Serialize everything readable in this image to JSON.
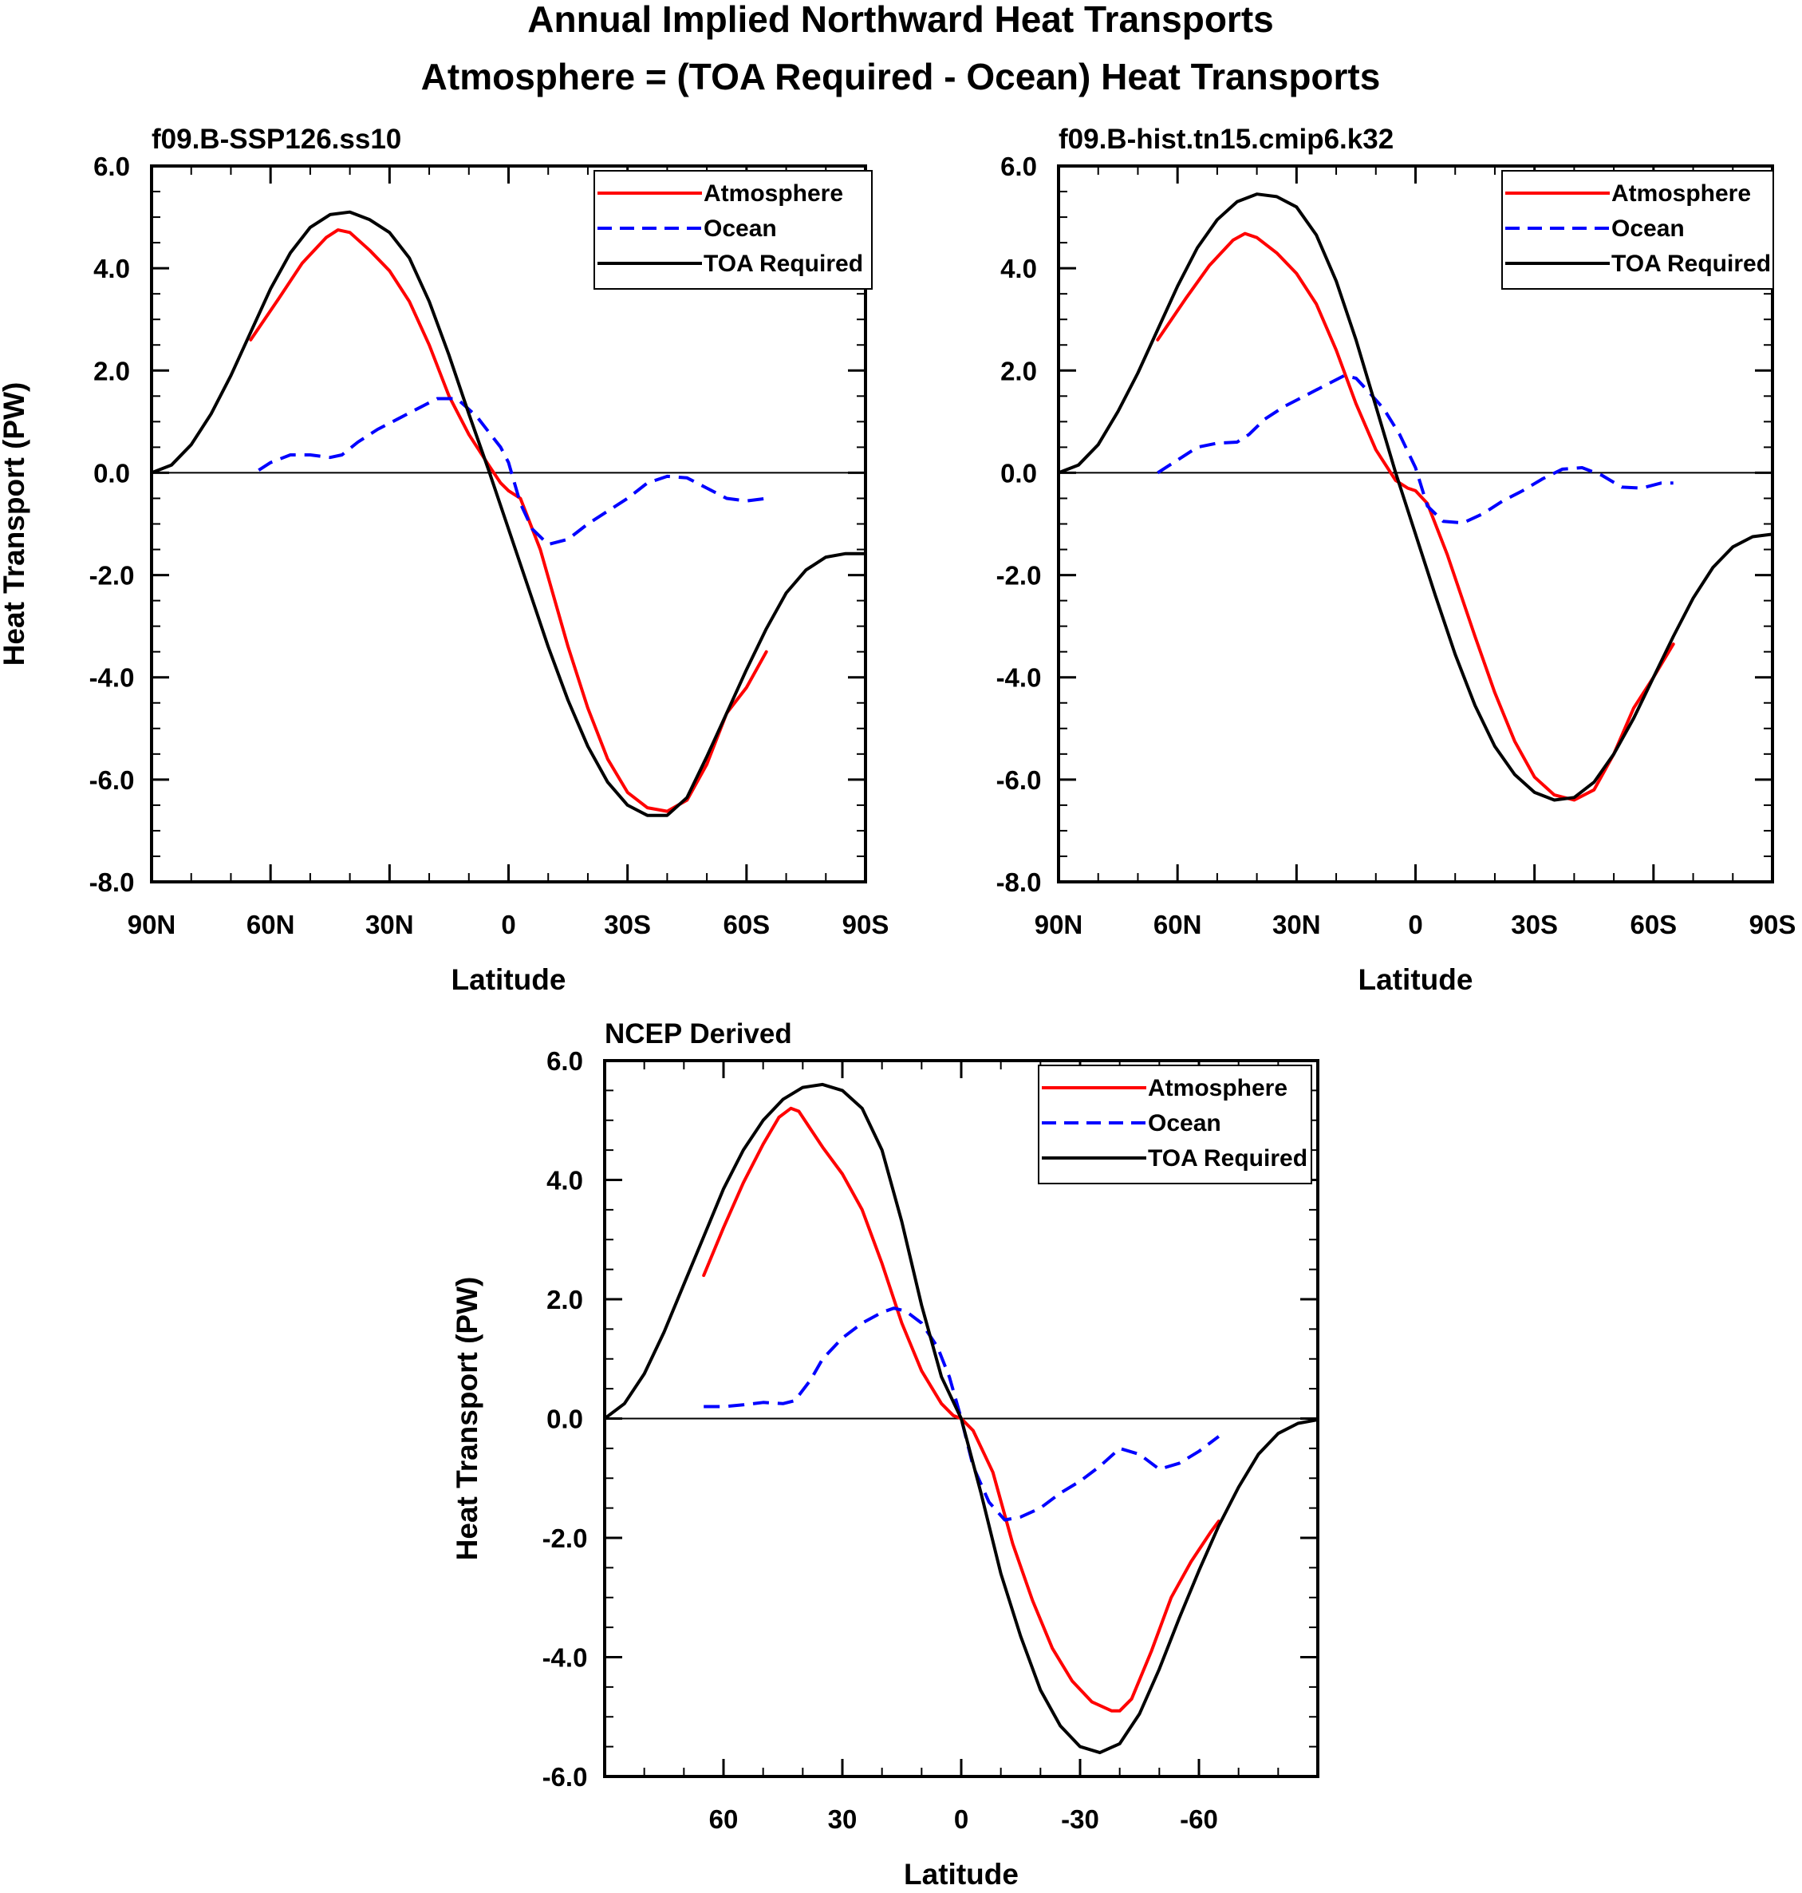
{
  "figure": {
    "title_line1": "Annual Implied Northward Heat Transports",
    "title_line2": "Atmosphere = (TOA Required - Ocean) Heat Transports"
  },
  "colors": {
    "atmosphere": "#ff0000",
    "ocean": "#0000ff",
    "toa": "#000000"
  },
  "chart_data": [
    {
      "type": "line",
      "title": "f09.B-SSP126.ss10",
      "xlabel": "Latitude",
      "ylabel": "Heat Transport (PW)",
      "xlim": [
        90,
        -90
      ],
      "ylim": [
        -8,
        6
      ],
      "xticks": [
        90,
        60,
        30,
        0,
        -30,
        -60,
        -90
      ],
      "xticklabels": [
        "90N",
        "60N",
        "30N",
        "0",
        "30S",
        "60S",
        "90S"
      ],
      "yticks": [
        6,
        4,
        2,
        0,
        -2,
        -4,
        -6,
        -8
      ],
      "yticklabels": [
        "6.0",
        "4.0",
        "2.0",
        "0.0",
        "-2.0",
        "-4.0",
        "-6.0",
        "-8.0"
      ],
      "legend": [
        "Atmosphere",
        "Ocean",
        "TOA Required"
      ],
      "legend_position": "top-right",
      "series": [
        {
          "name": "Atmosphere",
          "color": "#ff0000",
          "dash": "solid",
          "x": [
            65,
            58,
            52,
            46,
            43,
            40,
            35,
            30,
            25,
            20,
            15,
            10,
            5,
            2,
            0,
            -3,
            -8,
            -15,
            -20,
            -25,
            -30,
            -35,
            -40,
            -45,
            -50,
            -55,
            -60,
            -65
          ],
          "y": [
            2.6,
            3.4,
            4.1,
            4.6,
            4.75,
            4.7,
            4.35,
            3.95,
            3.35,
            2.5,
            1.5,
            0.75,
            0.15,
            -0.2,
            -0.35,
            -0.5,
            -1.5,
            -3.4,
            -4.6,
            -5.6,
            -6.25,
            -6.55,
            -6.62,
            -6.4,
            -5.7,
            -4.7,
            -4.2,
            -3.5
          ]
        },
        {
          "name": "Ocean",
          "color": "#0000ff",
          "dash": "dashed",
          "x": [
            63,
            60,
            55,
            50,
            45,
            42,
            38,
            33,
            28,
            23,
            18,
            13,
            8,
            5,
            2,
            0,
            -3,
            -6,
            -10,
            -15,
            -20,
            -25,
            -30,
            -35,
            -40,
            -45,
            -50,
            -55,
            -60,
            -65
          ],
          "y": [
            0.05,
            0.2,
            0.35,
            0.35,
            0.3,
            0.35,
            0.6,
            0.85,
            1.05,
            1.25,
            1.45,
            1.45,
            1.1,
            0.8,
            0.5,
            0.2,
            -0.6,
            -1.1,
            -1.4,
            -1.3,
            -1.0,
            -0.75,
            -0.5,
            -0.2,
            -0.07,
            -0.1,
            -0.3,
            -0.5,
            -0.55,
            -0.5
          ]
        },
        {
          "name": "TOA Required",
          "color": "#000000",
          "dash": "solid",
          "x": [
            90,
            85,
            80,
            75,
            70,
            65,
            60,
            55,
            50,
            45,
            40,
            35,
            30,
            25,
            20,
            15,
            10,
            5,
            0,
            -5,
            -10,
            -15,
            -20,
            -25,
            -30,
            -35,
            -40,
            -45,
            -50,
            -55,
            -60,
            -65,
            -70,
            -75,
            -80,
            -85,
            -90
          ],
          "y": [
            0,
            0.15,
            0.55,
            1.15,
            1.9,
            2.75,
            3.6,
            4.3,
            4.8,
            5.05,
            5.1,
            4.95,
            4.7,
            4.2,
            3.35,
            2.3,
            1.15,
            0.05,
            -1.1,
            -2.25,
            -3.4,
            -4.45,
            -5.35,
            -6.05,
            -6.5,
            -6.7,
            -6.7,
            -6.35,
            -5.55,
            -4.7,
            -3.85,
            -3.05,
            -2.35,
            -1.9,
            -1.65,
            -1.58,
            -1.58
          ]
        }
      ]
    },
    {
      "type": "line",
      "title": "f09.B-hist.tn15.cmip6.k32",
      "xlabel": "Latitude",
      "ylabel": "",
      "xlim": [
        90,
        -90
      ],
      "ylim": [
        -8,
        6
      ],
      "xticks": [
        90,
        60,
        30,
        0,
        -30,
        -60,
        -90
      ],
      "xticklabels": [
        "90N",
        "60N",
        "30N",
        "0",
        "30S",
        "60S",
        "90S"
      ],
      "yticks": [
        6,
        4,
        2,
        0,
        -2,
        -4,
        -6,
        -8
      ],
      "yticklabels": [
        "6.0",
        "4.0",
        "2.0",
        "0.0",
        "-2.0",
        "-4.0",
        "-6.0",
        "-8.0"
      ],
      "legend": [
        "Atmosphere",
        "Ocean",
        "TOA Required"
      ],
      "legend_position": "top-right",
      "series": [
        {
          "name": "Atmosphere",
          "color": "#ff0000",
          "dash": "solid",
          "x": [
            65,
            58,
            52,
            46,
            43,
            40,
            35,
            30,
            25,
            20,
            15,
            10,
            5,
            2,
            0,
            -3,
            -8,
            -15,
            -20,
            -25,
            -30,
            -35,
            -40,
            -45,
            -50,
            -55,
            -60,
            -65
          ],
          "y": [
            2.6,
            3.4,
            4.05,
            4.55,
            4.68,
            4.6,
            4.3,
            3.9,
            3.3,
            2.4,
            1.35,
            0.45,
            -0.15,
            -0.3,
            -0.35,
            -0.6,
            -1.6,
            -3.2,
            -4.3,
            -5.25,
            -5.95,
            -6.3,
            -6.4,
            -6.2,
            -5.5,
            -4.6,
            -4.0,
            -3.35
          ]
        },
        {
          "name": "Ocean",
          "color": "#0000ff",
          "dash": "dashed",
          "x": [
            65,
            60,
            55,
            50,
            45,
            42,
            38,
            33,
            28,
            23,
            18,
            15,
            12,
            8,
            4,
            0,
            -3,
            -7,
            -12,
            -17,
            -22,
            -27,
            -32,
            -37,
            -42,
            -47,
            -52,
            -57,
            -62,
            -65
          ],
          "y": [
            0.0,
            0.25,
            0.5,
            0.58,
            0.6,
            0.75,
            1.05,
            1.3,
            1.5,
            1.7,
            1.9,
            1.85,
            1.6,
            1.25,
            0.75,
            0.1,
            -0.65,
            -0.95,
            -0.98,
            -0.8,
            -0.55,
            -0.35,
            -0.12,
            0.07,
            0.1,
            -0.05,
            -0.28,
            -0.3,
            -0.2,
            -0.2
          ]
        },
        {
          "name": "TOA Required",
          "color": "#000000",
          "dash": "solid",
          "x": [
            90,
            85,
            80,
            75,
            70,
            65,
            60,
            55,
            50,
            45,
            40,
            35,
            30,
            25,
            20,
            15,
            10,
            5,
            0,
            -5,
            -10,
            -15,
            -20,
            -25,
            -30,
            -35,
            -40,
            -45,
            -50,
            -55,
            -60,
            -65,
            -70,
            -75,
            -80,
            -85,
            -90
          ],
          "y": [
            0,
            0.15,
            0.55,
            1.2,
            1.95,
            2.8,
            3.65,
            4.4,
            4.95,
            5.3,
            5.45,
            5.4,
            5.2,
            4.65,
            3.75,
            2.6,
            1.3,
            0.0,
            -1.2,
            -2.4,
            -3.55,
            -4.55,
            -5.35,
            -5.9,
            -6.25,
            -6.4,
            -6.35,
            -6.05,
            -5.5,
            -4.8,
            -4.0,
            -3.2,
            -2.45,
            -1.85,
            -1.45,
            -1.25,
            -1.2
          ]
        }
      ]
    },
    {
      "type": "line",
      "title": "NCEP Derived",
      "xlabel": "Latitude",
      "ylabel": "Heat Transport (PW)",
      "xlim": [
        90,
        -90
      ],
      "ylim": [
        -6,
        6
      ],
      "xticks": [
        60,
        30,
        0,
        -30,
        -60
      ],
      "xticklabels": [
        "60",
        "30",
        "0",
        "-30",
        "-60"
      ],
      "yticks": [
        6,
        4,
        2,
        0,
        -2,
        -4,
        -6
      ],
      "yticklabels": [
        "6.0",
        "4.0",
        "2.0",
        "0.0",
        "-2.0",
        "-4.0",
        "-6.0"
      ],
      "legend": [
        "Atmosphere",
        "Ocean",
        "TOA Required"
      ],
      "legend_position": "top-right",
      "series": [
        {
          "name": "Atmosphere",
          "color": "#ff0000",
          "dash": "solid",
          "x": [
            65,
            60,
            55,
            50,
            46,
            43,
            41,
            38,
            35,
            30,
            25,
            20,
            15,
            10,
            5,
            2,
            0,
            -3,
            -8,
            -13,
            -18,
            -23,
            -28,
            -33,
            -38,
            -40,
            -43,
            -48,
            -53,
            -58,
            -63,
            -65
          ],
          "y": [
            2.4,
            3.2,
            3.95,
            4.6,
            5.05,
            5.2,
            5.15,
            4.85,
            4.55,
            4.1,
            3.5,
            2.6,
            1.6,
            0.8,
            0.25,
            0.05,
            0.0,
            -0.2,
            -0.9,
            -2.1,
            -3.05,
            -3.85,
            -4.4,
            -4.75,
            -4.9,
            -4.9,
            -4.7,
            -3.9,
            -3.0,
            -2.4,
            -1.9,
            -1.72
          ]
        },
        {
          "name": "Ocean",
          "color": "#0000ff",
          "dash": "dashed",
          "x": [
            65,
            60,
            55,
            50,
            45,
            42,
            38,
            35,
            30,
            25,
            20,
            17,
            14,
            10,
            6,
            3,
            0,
            -3,
            -7,
            -11,
            -15,
            -20,
            -25,
            -30,
            -35,
            -40,
            -45,
            -50,
            -55,
            -60,
            -65
          ],
          "y": [
            0.2,
            0.2,
            0.23,
            0.27,
            0.25,
            0.3,
            0.65,
            1.0,
            1.35,
            1.6,
            1.78,
            1.85,
            1.8,
            1.6,
            1.2,
            0.7,
            0.0,
            -0.8,
            -1.4,
            -1.7,
            -1.65,
            -1.5,
            -1.25,
            -1.05,
            -0.8,
            -0.5,
            -0.6,
            -0.85,
            -0.75,
            -0.55,
            -0.3
          ]
        },
        {
          "name": "TOA Required",
          "color": "#000000",
          "dash": "solid",
          "x": [
            90,
            85,
            80,
            75,
            70,
            65,
            60,
            55,
            50,
            45,
            40,
            35,
            30,
            25,
            20,
            15,
            10,
            5,
            0,
            -5,
            -10,
            -15,
            -20,
            -25,
            -30,
            -35,
            -40,
            -45,
            -50,
            -55,
            -60,
            -65,
            -70,
            -75,
            -80,
            -85,
            -90
          ],
          "y": [
            0,
            0.25,
            0.75,
            1.45,
            2.25,
            3.05,
            3.85,
            4.5,
            5.0,
            5.35,
            5.55,
            5.6,
            5.5,
            5.2,
            4.5,
            3.3,
            1.9,
            0.7,
            0.0,
            -1.25,
            -2.6,
            -3.65,
            -4.55,
            -5.15,
            -5.5,
            -5.6,
            -5.45,
            -4.95,
            -4.2,
            -3.35,
            -2.55,
            -1.8,
            -1.15,
            -0.6,
            -0.25,
            -0.08,
            -0.02
          ]
        }
      ]
    }
  ]
}
